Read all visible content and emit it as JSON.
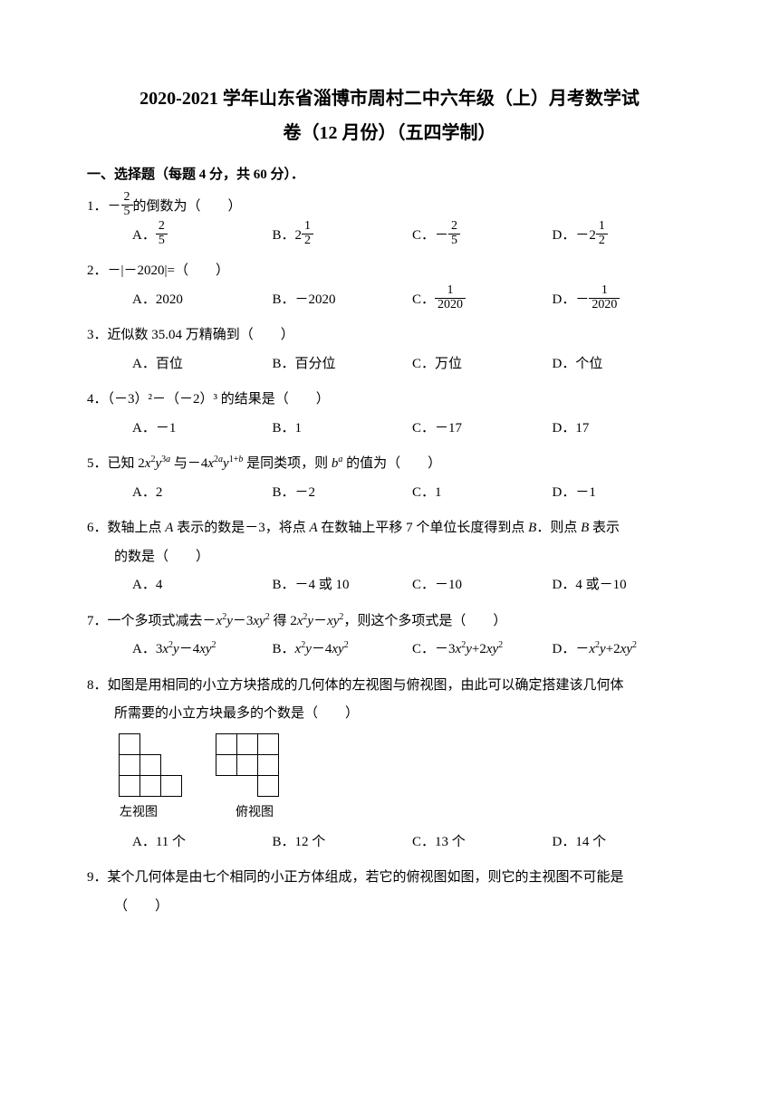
{
  "title_line1": "2020-2021 学年山东省淄博市周村二中六年级（上）月考数学试",
  "title_line2": "卷（12 月份）（五四学制）",
  "section1": "一、选择题（每题 4 分，共 60 分）．",
  "q1": {
    "text_prefix": "1．－",
    "frac_num": "2",
    "frac_den": "5",
    "text_suffix": "的倒数为（　　）",
    "A_prefix": "A．",
    "A_num": "2",
    "A_den": "5",
    "B_prefix": "B．2",
    "B_num": "1",
    "B_den": "2",
    "C_prefix": "C．－",
    "C_num": "2",
    "C_den": "5",
    "D_prefix": "D．－2",
    "D_num": "1",
    "D_den": "2"
  },
  "q2": {
    "text": "2．－|－2020|=（　　）",
    "A": "A．2020",
    "B": "B．－2020",
    "C_prefix": "C．",
    "C_num": "1",
    "C_den": "2020",
    "D_prefix": "D．－",
    "D_num": "1",
    "D_den": "2020"
  },
  "q3": {
    "text": "3．近似数 35.04 万精确到（　　）",
    "A": "A．百位",
    "B": "B．百分位",
    "C": "C．万位",
    "D": "D．个位"
  },
  "q4": {
    "text": "4．（－3）²－（－2）³ 的结果是（　　）",
    "A": "A．－1",
    "B": "B．1",
    "C": "C．－17",
    "D": "D．17"
  },
  "q5": {
    "text": "5．已知 2x²y³ᵃ 与－4x²ᵃy¹⁺ᵇ 是同类项，则 bᵃ 的值为（　　）",
    "A": "A．2",
    "B": "B．－2",
    "C": "C．1",
    "D": "D．－1"
  },
  "q6": {
    "line1": "6．数轴上点 A 表示的数是－3，将点 A 在数轴上平移 7 个单位长度得到点 B．则点 B 表示",
    "line2": "的数是（　　）",
    "A": "A．4",
    "B": "B．－4 或 10",
    "C": "C．－10",
    "D": "D．4 或－10"
  },
  "q7": {
    "text": "7．一个多项式减去－x²y－3xy² 得 2x²y－xy²，则这个多项式是（　　）",
    "A": "A．3x²y－4xy²",
    "B": "B．x²y－4xy²",
    "C": "C．－3x²y+2xy²",
    "D": "D．－x²y+2xy²"
  },
  "q8": {
    "line1": "8．如图是用相同的小立方块搭成的几何体的左视图与俯视图，由此可以确定搭建该几何体",
    "line2": "所需要的小立方块最多的个数是（　　）",
    "label_left": "左视图",
    "label_top": "俯视图",
    "A": "A．11 个",
    "B": "B．12 个",
    "C": "C．13 个",
    "D": "D．14 个"
  },
  "q9": {
    "line1": "9．某个几何体是由七个相同的小正方体组成，若它的俯视图如图，则它的主视图不可能是",
    "line2": "（　　）"
  }
}
